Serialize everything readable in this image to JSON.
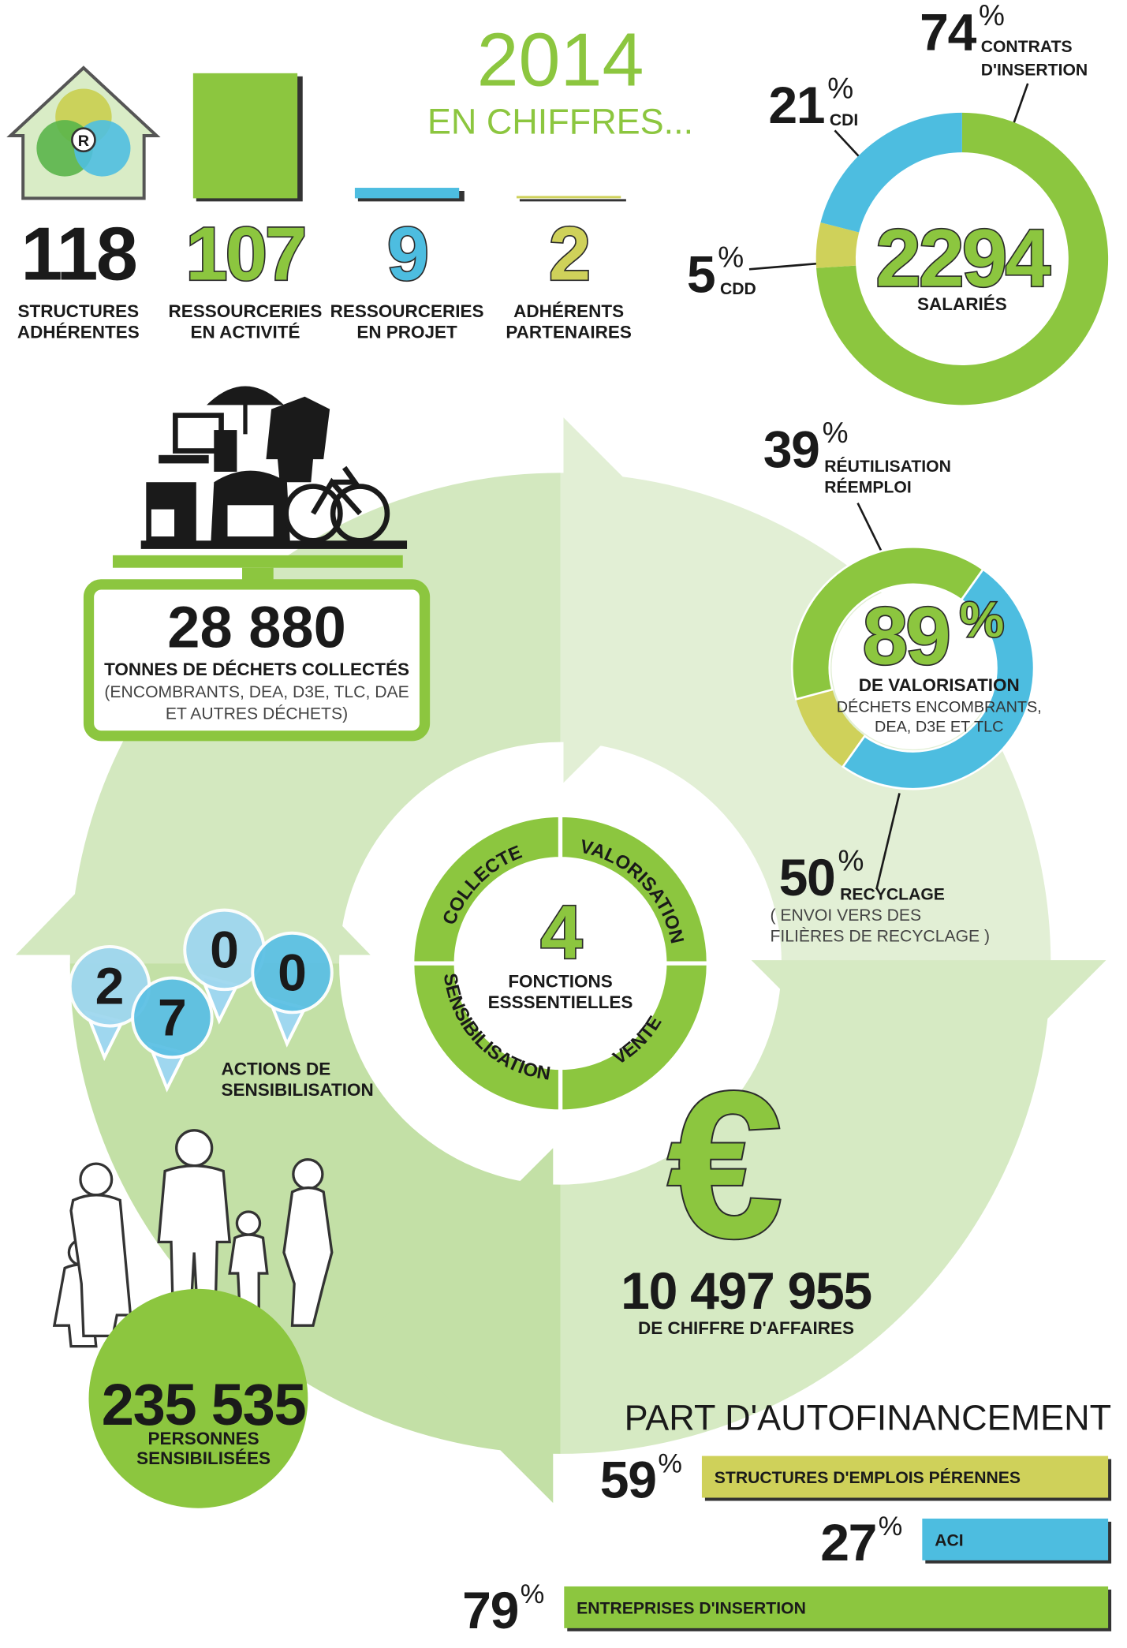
{
  "header": {
    "year": "2014",
    "subtitle": "EN CHIFFRES..."
  },
  "house_icon": {
    "letter": "R"
  },
  "stats": [
    {
      "value": 118,
      "label": [
        "STRUCTURES",
        "ADHÉRENTES"
      ],
      "color": "#1a1a1a"
    },
    {
      "value": 107,
      "label": [
        "RESSOURCERIES",
        "EN ACTIVITÉ"
      ],
      "color": "#8cc63f"
    },
    {
      "value": 9,
      "label": [
        "RESSOURCERIES",
        "EN PROJET"
      ],
      "color": "#4dbde0"
    },
    {
      "value": 2,
      "label": [
        "ADHÉRENTS",
        "PARTENAIRES"
      ],
      "color": "#cfd15a"
    }
  ],
  "employees": {
    "total": 2294,
    "total_label": "SALARIÉS",
    "unit": "%",
    "segments": [
      {
        "value": 74,
        "label": [
          "CONTRATS",
          "D'INSERTION"
        ],
        "color": "#8cc63f"
      },
      {
        "value": 5,
        "label": [
          "CDD"
        ],
        "color": "#cfd15a"
      },
      {
        "value": 21,
        "label": [
          "CDI"
        ],
        "color": "#4dbde0"
      }
    ]
  },
  "waste": {
    "value": "28 880",
    "label": "TONNES DE DÉCHETS COLLECTÉS",
    "detail": [
      "(ENCOMBRANTS, DEA, D3E, TLC, DAE",
      "ET AUTRES DÉCHETS)"
    ]
  },
  "valorisation": {
    "value": 89,
    "unit": "%",
    "label": "DE VALORISATION",
    "detail": [
      "DÉCHETS ENCOMBRANTS,",
      "DEA, D3E ET TLC"
    ],
    "segments": [
      {
        "value": 39,
        "label": [
          "RÉUTILISATION",
          "RÉEMPLOI"
        ],
        "color": "#8cc63f"
      },
      {
        "value": 50,
        "label": [
          "RECYCLAGE"
        ],
        "note": [
          "( ENVOI VERS DES",
          "FILIÈRES DE RECYCLAGE )"
        ],
        "color": "#4dbde0"
      }
    ]
  },
  "functions": {
    "count": 4,
    "label": [
      "FONCTIONS",
      "ESSSENTIELLES"
    ],
    "items": [
      "COLLECTE",
      "VALORISATION",
      "VENTE",
      "SENSIBILISATION"
    ]
  },
  "actions": {
    "digits": [
      "2",
      "7",
      "0",
      "0"
    ],
    "label": [
      "ACTIONS DE",
      "SENSIBILISATION"
    ]
  },
  "people": {
    "value": "235 535",
    "label": [
      "PERSONNES",
      "SENSIBILISÉES"
    ]
  },
  "revenue": {
    "symbol": "€",
    "value": "10 497 955",
    "label": "DE CHIFFRE D'AFFAIRES"
  },
  "self_financing": {
    "title": "PART D'AUTOFINANCEMENT",
    "unit": "%",
    "bars": [
      {
        "value": 59,
        "label": "STRUCTURES D'EMPLOIS PÉRENNES",
        "color": "#cfd15a"
      },
      {
        "value": 27,
        "label": "ACI",
        "color": "#4dbde0"
      },
      {
        "value": 79,
        "label": "ENTREPRISES D'INSERTION",
        "color": "#8cc63f"
      }
    ]
  }
}
